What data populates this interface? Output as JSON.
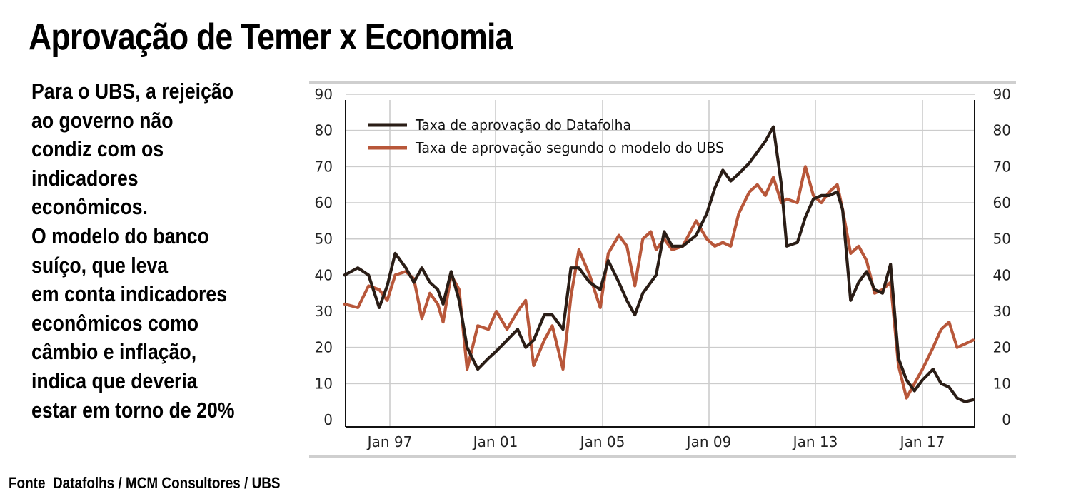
{
  "title": "Aprovação de Temer x Economia",
  "side_text": [
    "Para o UBS, a rejeição",
    "ao governo não",
    "condiz com os",
    "indicadores",
    "econômicos.",
    "O modelo do banco",
    "suíço, que leva",
    "em conta indicadores",
    "econômicos como",
    "câmbio e inflação,",
    "indica que deveria",
    "estar em torno de 20%"
  ],
  "source": "Fonte  Datafolhs / MCM Consultores / UBS",
  "colors": {
    "datafolha": "#2a1d16",
    "ubs_model": "#b8573a",
    "grid": "#cccccc",
    "frame_band": "#cfcfcf"
  },
  "chart_data": {
    "type": "line",
    "title": "",
    "xlabel": "",
    "ylabel": "",
    "x_ticks": [
      "Jan 97",
      "Jan 01",
      "Jan 05",
      "Jan 09",
      "Jan 13",
      "Jan 17"
    ],
    "y_ticks": [
      "90",
      "80",
      "70",
      "60",
      "50",
      "40",
      "30",
      "20",
      "10",
      "0"
    ],
    "ylim": [
      0,
      90
    ],
    "xlim": [
      1995.3,
      2018.9
    ],
    "grid": true,
    "legend_position": "top-left",
    "series": [
      {
        "name": "Taxa de aprovação do Datafolha",
        "points": [
          [
            1995.3,
            40
          ],
          [
            1995.8,
            42
          ],
          [
            1996.2,
            40
          ],
          [
            1996.6,
            31
          ],
          [
            1996.9,
            37
          ],
          [
            1997.2,
            46
          ],
          [
            1997.6,
            42
          ],
          [
            1997.9,
            38
          ],
          [
            1998.2,
            42
          ],
          [
            1998.5,
            38
          ],
          [
            1998.8,
            36
          ],
          [
            1999.0,
            32
          ],
          [
            1999.3,
            41
          ],
          [
            1999.6,
            33
          ],
          [
            1999.9,
            20
          ],
          [
            2000.3,
            14
          ],
          [
            2000.7,
            17
          ],
          [
            2001.0,
            19
          ],
          [
            2001.4,
            22
          ],
          [
            2001.8,
            25
          ],
          [
            2002.1,
            20
          ],
          [
            2002.4,
            22
          ],
          [
            2002.8,
            29
          ],
          [
            2003.1,
            29
          ],
          [
            2003.5,
            25
          ],
          [
            2003.8,
            42
          ],
          [
            2004.1,
            42
          ],
          [
            2004.5,
            38
          ],
          [
            2004.9,
            36
          ],
          [
            2005.2,
            44
          ],
          [
            2005.6,
            38
          ],
          [
            2005.9,
            33
          ],
          [
            2006.2,
            29
          ],
          [
            2006.5,
            35
          ],
          [
            2006.8,
            38
          ],
          [
            2007.0,
            40
          ],
          [
            2007.3,
            52
          ],
          [
            2007.6,
            48
          ],
          [
            2008.0,
            48
          ],
          [
            2008.5,
            51
          ],
          [
            2008.9,
            57
          ],
          [
            2009.2,
            64
          ],
          [
            2009.5,
            69
          ],
          [
            2009.8,
            66
          ],
          [
            2010.1,
            68
          ],
          [
            2010.5,
            71
          ],
          [
            2010.8,
            74
          ],
          [
            2011.1,
            77
          ],
          [
            2011.4,
            81
          ],
          [
            2011.7,
            65
          ],
          [
            2011.9,
            48
          ],
          [
            2012.3,
            49
          ],
          [
            2012.6,
            56
          ],
          [
            2012.9,
            61
          ],
          [
            2013.2,
            62
          ],
          [
            2013.5,
            62
          ],
          [
            2013.8,
            63
          ],
          [
            2014.0,
            58
          ],
          [
            2014.3,
            33
          ],
          [
            2014.6,
            38
          ],
          [
            2014.9,
            41
          ],
          [
            2015.2,
            36
          ],
          [
            2015.5,
            35
          ],
          [
            2015.8,
            43
          ],
          [
            2016.1,
            17
          ],
          [
            2016.4,
            11
          ],
          [
            2016.7,
            8
          ],
          [
            2017.0,
            11
          ],
          [
            2017.4,
            14
          ],
          [
            2017.7,
            10
          ],
          [
            2018.0,
            9
          ],
          [
            2018.3,
            6
          ],
          [
            2018.6,
            5
          ],
          [
            2018.9,
            5.5
          ]
        ]
      },
      {
        "name": "Taxa de aprovação segundo o modelo do UBS",
        "points": [
          [
            1995.3,
            32
          ],
          [
            1995.8,
            31
          ],
          [
            1996.2,
            37
          ],
          [
            1996.6,
            36
          ],
          [
            1996.9,
            33
          ],
          [
            1997.2,
            40
          ],
          [
            1997.6,
            41
          ],
          [
            1997.9,
            39
          ],
          [
            1998.2,
            28
          ],
          [
            1998.5,
            35
          ],
          [
            1998.8,
            32
          ],
          [
            1999.0,
            27
          ],
          [
            1999.3,
            40
          ],
          [
            1999.6,
            36
          ],
          [
            1999.9,
            14
          ],
          [
            2000.3,
            26
          ],
          [
            2000.7,
            25
          ],
          [
            2001.0,
            30
          ],
          [
            2001.4,
            25
          ],
          [
            2001.8,
            30
          ],
          [
            2002.1,
            33
          ],
          [
            2002.4,
            15
          ],
          [
            2002.8,
            22
          ],
          [
            2003.1,
            26
          ],
          [
            2003.5,
            14
          ],
          [
            2003.8,
            34
          ],
          [
            2004.1,
            47
          ],
          [
            2004.5,
            40
          ],
          [
            2004.9,
            31
          ],
          [
            2005.2,
            46
          ],
          [
            2005.6,
            51
          ],
          [
            2005.9,
            48
          ],
          [
            2006.2,
            37
          ],
          [
            2006.5,
            50
          ],
          [
            2006.8,
            52
          ],
          [
            2007.0,
            47
          ],
          [
            2007.3,
            50
          ],
          [
            2007.6,
            47
          ],
          [
            2008.0,
            48
          ],
          [
            2008.5,
            55
          ],
          [
            2008.9,
            50
          ],
          [
            2009.2,
            48
          ],
          [
            2009.5,
            49
          ],
          [
            2009.8,
            48
          ],
          [
            2010.1,
            57
          ],
          [
            2010.5,
            63
          ],
          [
            2010.8,
            65
          ],
          [
            2011.1,
            62
          ],
          [
            2011.4,
            67
          ],
          [
            2011.7,
            60
          ],
          [
            2011.9,
            61
          ],
          [
            2012.3,
            60
          ],
          [
            2012.6,
            70
          ],
          [
            2012.9,
            62
          ],
          [
            2013.2,
            60
          ],
          [
            2013.5,
            63
          ],
          [
            2013.8,
            65
          ],
          [
            2014.0,
            58
          ],
          [
            2014.3,
            46
          ],
          [
            2014.6,
            48
          ],
          [
            2014.9,
            44
          ],
          [
            2015.2,
            35
          ],
          [
            2015.5,
            36
          ],
          [
            2015.8,
            38
          ],
          [
            2016.1,
            15
          ],
          [
            2016.4,
            6
          ],
          [
            2016.7,
            10
          ],
          [
            2017.0,
            14
          ],
          [
            2017.4,
            20
          ],
          [
            2017.7,
            25
          ],
          [
            2018.0,
            27
          ],
          [
            2018.3,
            20
          ],
          [
            2018.6,
            21
          ],
          [
            2018.9,
            22
          ]
        ]
      }
    ]
  }
}
